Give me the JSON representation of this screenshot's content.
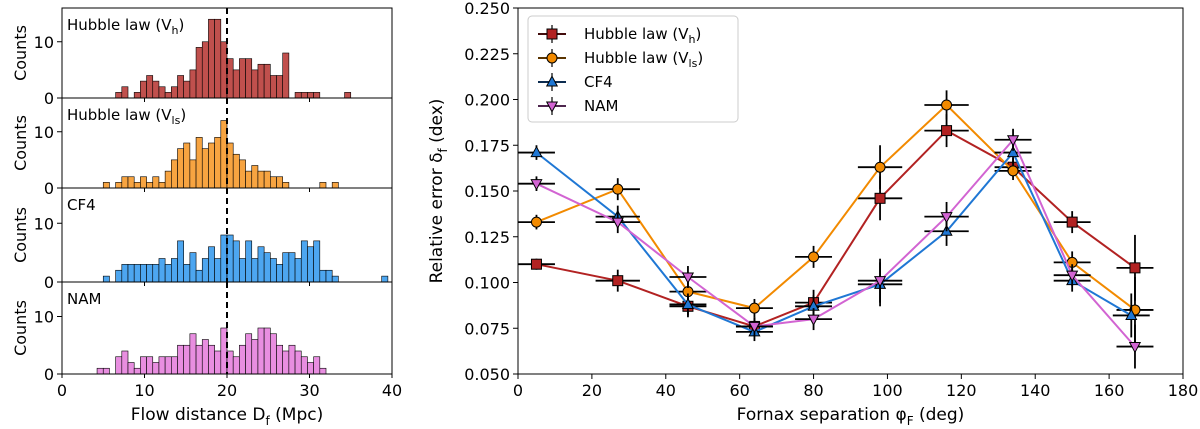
{
  "chart_data": [
    {
      "type": "bar",
      "panel": "histogram-1",
      "label": "Hubble law (V",
      "label_sub": "h",
      "label_close": ")",
      "ylabel": "Counts",
      "xlim": [
        0,
        40
      ],
      "ylim": [
        0,
        16
      ],
      "yticks": [
        "0",
        "10"
      ],
      "ytick_values": [
        0,
        10
      ],
      "marker_line_x": 20,
      "bin_width": 0.75,
      "bins": [
        {
          "x": 6.5,
          "v": 1
        },
        {
          "x": 7.25,
          "v": 2
        },
        {
          "x": 8.75,
          "v": 1
        },
        {
          "x": 9.5,
          "v": 3
        },
        {
          "x": 10.25,
          "v": 4
        },
        {
          "x": 11.0,
          "v": 3
        },
        {
          "x": 11.75,
          "v": 2
        },
        {
          "x": 12.5,
          "v": 1
        },
        {
          "x": 13.25,
          "v": 2
        },
        {
          "x": 14.0,
          "v": 4
        },
        {
          "x": 14.75,
          "v": 3
        },
        {
          "x": 15.5,
          "v": 5
        },
        {
          "x": 16.25,
          "v": 9
        },
        {
          "x": 17.0,
          "v": 10
        },
        {
          "x": 17.75,
          "v": 14
        },
        {
          "x": 18.5,
          "v": 14
        },
        {
          "x": 19.25,
          "v": 10
        },
        {
          "x": 20.0,
          "v": 7
        },
        {
          "x": 20.75,
          "v": 5
        },
        {
          "x": 21.5,
          "v": 7
        },
        {
          "x": 22.25,
          "v": 7
        },
        {
          "x": 23.0,
          "v": 5
        },
        {
          "x": 23.75,
          "v": 6
        },
        {
          "x": 24.5,
          "v": 6
        },
        {
          "x": 25.25,
          "v": 4
        },
        {
          "x": 26.0,
          "v": 4
        },
        {
          "x": 26.75,
          "v": 8
        },
        {
          "x": 28.25,
          "v": 1
        },
        {
          "x": 29.0,
          "v": 1
        },
        {
          "x": 29.75,
          "v": 1
        },
        {
          "x": 30.5,
          "v": 1
        },
        {
          "x": 34.25,
          "v": 1
        }
      ],
      "color": "#c0504d"
    },
    {
      "type": "bar",
      "panel": "histogram-2",
      "label": "Hubble law (V",
      "label_sub": "ls",
      "label_close": ")",
      "ylabel": "Counts",
      "xlim": [
        0,
        40
      ],
      "ylim": [
        0,
        16
      ],
      "yticks": [
        "0",
        "10"
      ],
      "ytick_values": [
        0,
        10
      ],
      "marker_line_x": 20,
      "bin_width": 0.75,
      "bins": [
        {
          "x": 5.0,
          "v": 1
        },
        {
          "x": 6.5,
          "v": 1
        },
        {
          "x": 7.25,
          "v": 2
        },
        {
          "x": 8.0,
          "v": 2
        },
        {
          "x": 8.75,
          "v": 1
        },
        {
          "x": 9.5,
          "v": 2
        },
        {
          "x": 10.25,
          "v": 1
        },
        {
          "x": 11.0,
          "v": 2
        },
        {
          "x": 11.75,
          "v": 1
        },
        {
          "x": 12.5,
          "v": 3
        },
        {
          "x": 13.25,
          "v": 5
        },
        {
          "x": 14.0,
          "v": 7
        },
        {
          "x": 14.75,
          "v": 8
        },
        {
          "x": 15.5,
          "v": 5
        },
        {
          "x": 16.25,
          "v": 9
        },
        {
          "x": 17.0,
          "v": 7
        },
        {
          "x": 17.75,
          "v": 8
        },
        {
          "x": 18.5,
          "v": 9
        },
        {
          "x": 19.25,
          "v": 12
        },
        {
          "x": 20.0,
          "v": 8
        },
        {
          "x": 20.75,
          "v": 6
        },
        {
          "x": 21.5,
          "v": 5
        },
        {
          "x": 22.25,
          "v": 3
        },
        {
          "x": 23.0,
          "v": 4
        },
        {
          "x": 23.75,
          "v": 3
        },
        {
          "x": 24.5,
          "v": 3
        },
        {
          "x": 25.25,
          "v": 2
        },
        {
          "x": 26.0,
          "v": 2
        },
        {
          "x": 26.75,
          "v": 1
        },
        {
          "x": 31.25,
          "v": 1
        },
        {
          "x": 32.75,
          "v": 1
        }
      ],
      "color": "#f7a441"
    },
    {
      "type": "bar",
      "panel": "histogram-3",
      "label": "CF4",
      "ylabel": "Counts",
      "xlim": [
        0,
        40
      ],
      "ylim": [
        0,
        16
      ],
      "yticks": [
        "0",
        "10"
      ],
      "ytick_values": [
        0,
        10
      ],
      "marker_line_x": 20,
      "bin_width": 0.75,
      "bins": [
        {
          "x": 5.0,
          "v": 1
        },
        {
          "x": 6.5,
          "v": 2
        },
        {
          "x": 7.25,
          "v": 3
        },
        {
          "x": 8.0,
          "v": 3
        },
        {
          "x": 8.75,
          "v": 3
        },
        {
          "x": 9.5,
          "v": 3
        },
        {
          "x": 10.25,
          "v": 3
        },
        {
          "x": 11.0,
          "v": 3
        },
        {
          "x": 11.75,
          "v": 4
        },
        {
          "x": 12.5,
          "v": 3
        },
        {
          "x": 13.25,
          "v": 4
        },
        {
          "x": 14.0,
          "v": 7
        },
        {
          "x": 14.75,
          "v": 3
        },
        {
          "x": 15.5,
          "v": 5
        },
        {
          "x": 16.25,
          "v": 2
        },
        {
          "x": 17.0,
          "v": 4
        },
        {
          "x": 17.75,
          "v": 6
        },
        {
          "x": 18.5,
          "v": 4
        },
        {
          "x": 19.25,
          "v": 8
        },
        {
          "x": 20.0,
          "v": 8
        },
        {
          "x": 20.75,
          "v": 7
        },
        {
          "x": 21.5,
          "v": 4
        },
        {
          "x": 22.25,
          "v": 7
        },
        {
          "x": 23.0,
          "v": 4
        },
        {
          "x": 23.75,
          "v": 6
        },
        {
          "x": 24.5,
          "v": 5
        },
        {
          "x": 25.25,
          "v": 4
        },
        {
          "x": 26.0,
          "v": 3
        },
        {
          "x": 26.75,
          "v": 5
        },
        {
          "x": 27.5,
          "v": 5
        },
        {
          "x": 28.25,
          "v": 4
        },
        {
          "x": 29.0,
          "v": 7
        },
        {
          "x": 29.75,
          "v": 6
        },
        {
          "x": 30.5,
          "v": 7
        },
        {
          "x": 31.25,
          "v": 2
        },
        {
          "x": 32.0,
          "v": 2
        },
        {
          "x": 32.75,
          "v": 1
        },
        {
          "x": 38.75,
          "v": 1
        }
      ],
      "color": "#4da6f0"
    },
    {
      "type": "bar",
      "panel": "histogram-4",
      "label": "NAM",
      "ylabel": "Counts",
      "xlabel": "Flow distance D",
      "xlabel_sub": "f",
      "xlabel_unit": " (Mpc)",
      "xlim": [
        0,
        40
      ],
      "ylim": [
        0,
        16
      ],
      "xticks": [
        "0",
        "10",
        "20",
        "30",
        "40"
      ],
      "xtick_values": [
        0,
        10,
        20,
        30,
        40
      ],
      "yticks": [
        "0",
        "10"
      ],
      "ytick_values": [
        0,
        10
      ],
      "marker_line_x": 20,
      "bin_width": 0.75,
      "bins": [
        {
          "x": 4.25,
          "v": 1
        },
        {
          "x": 5.0,
          "v": 1
        },
        {
          "x": 6.5,
          "v": 3
        },
        {
          "x": 7.25,
          "v": 4
        },
        {
          "x": 8.0,
          "v": 2
        },
        {
          "x": 8.75,
          "v": 1
        },
        {
          "x": 9.5,
          "v": 3
        },
        {
          "x": 10.25,
          "v": 3
        },
        {
          "x": 11.0,
          "v": 2
        },
        {
          "x": 11.75,
          "v": 3
        },
        {
          "x": 12.5,
          "v": 3
        },
        {
          "x": 13.25,
          "v": 3
        },
        {
          "x": 14.0,
          "v": 5
        },
        {
          "x": 14.75,
          "v": 5
        },
        {
          "x": 15.5,
          "v": 7
        },
        {
          "x": 16.25,
          "v": 5
        },
        {
          "x": 17.0,
          "v": 6
        },
        {
          "x": 17.75,
          "v": 5
        },
        {
          "x": 18.5,
          "v": 4
        },
        {
          "x": 19.25,
          "v": 8
        },
        {
          "x": 20.0,
          "v": 4
        },
        {
          "x": 20.75,
          "v": 3
        },
        {
          "x": 21.5,
          "v": 5
        },
        {
          "x": 22.25,
          "v": 7
        },
        {
          "x": 23.0,
          "v": 6
        },
        {
          "x": 23.75,
          "v": 8
        },
        {
          "x": 24.5,
          "v": 8
        },
        {
          "x": 25.25,
          "v": 7
        },
        {
          "x": 26.0,
          "v": 5
        },
        {
          "x": 26.75,
          "v": 4
        },
        {
          "x": 27.5,
          "v": 5
        },
        {
          "x": 28.25,
          "v": 4
        },
        {
          "x": 29.0,
          "v": 3
        },
        {
          "x": 29.75,
          "v": 2
        },
        {
          "x": 30.5,
          "v": 3
        },
        {
          "x": 31.25,
          "v": 1
        }
      ],
      "color": "#e88ee0"
    },
    {
      "type": "line",
      "panel": "error-plot",
      "xlabel": "Fornax separation φ",
      "xlabel_sub": "F",
      "xlabel_unit": " (deg)",
      "ylabel": "Relative error δ",
      "ylabel_sub": "f",
      "ylabel_unit": " (dex)",
      "xlim": [
        0,
        180
      ],
      "ylim": [
        0.05,
        0.25
      ],
      "xticks": [
        "0",
        "20",
        "40",
        "60",
        "80",
        "100",
        "120",
        "140",
        "160",
        "180"
      ],
      "xtick_values": [
        0,
        20,
        40,
        60,
        80,
        100,
        120,
        140,
        160,
        180
      ],
      "yticks": [
        "0.050",
        "0.075",
        "0.100",
        "0.125",
        "0.150",
        "0.175",
        "0.200",
        "0.225",
        "0.250"
      ],
      "ytick_values": [
        0.05,
        0.075,
        0.1,
        0.125,
        0.15,
        0.175,
        0.2,
        0.225,
        0.25
      ],
      "legend_position": "top-left",
      "series": [
        {
          "name": "Hubble law (V",
          "name_sub": "h",
          "name_close": ")",
          "marker": "square",
          "color": "#b22222",
          "x": [
            5,
            27,
            46,
            64,
            80,
            98,
            116,
            134,
            150,
            167
          ],
          "y": [
            0.11,
            0.101,
            0.087,
            0.076,
            0.089,
            0.146,
            0.183,
            0.163,
            0.133,
            0.108
          ],
          "xerr": [
            5,
            6,
            5,
            5,
            5,
            6,
            6,
            5,
            5,
            5
          ],
          "yerr": [
            0.003,
            0.006,
            0.006,
            0.005,
            0.007,
            0.012,
            0.009,
            0.005,
            0.006,
            0.018
          ]
        },
        {
          "name": "Hubble law (V",
          "name_sub": "ls",
          "name_close": ")",
          "marker": "circle",
          "color": "#f28a00",
          "x": [
            5,
            27,
            46,
            64,
            80,
            98,
            116,
            134,
            150,
            167
          ],
          "y": [
            0.133,
            0.151,
            0.095,
            0.086,
            0.114,
            0.163,
            0.197,
            0.161,
            0.111,
            0.085
          ],
          "xerr": [
            5,
            6,
            5,
            5,
            5,
            6,
            6,
            5,
            5,
            5
          ],
          "yerr": [
            0.004,
            0.006,
            0.006,
            0.005,
            0.006,
            0.012,
            0.008,
            0.005,
            0.006,
            0.018
          ]
        },
        {
          "name": "CF4",
          "marker": "triangle-up",
          "color": "#1f77d4",
          "x": [
            5,
            27,
            46,
            64,
            80,
            98,
            116,
            134,
            150,
            166
          ],
          "y": [
            0.171,
            0.136,
            0.088,
            0.073,
            0.087,
            0.099,
            0.128,
            0.171,
            0.101,
            0.082
          ],
          "xerr": [
            5,
            6,
            5,
            5,
            5,
            6,
            6,
            5,
            5,
            5
          ],
          "yerr": [
            0.004,
            0.006,
            0.006,
            0.005,
            0.006,
            0.012,
            0.008,
            0.006,
            0.006,
            0.012
          ]
        },
        {
          "name": "NAM",
          "marker": "triangle-down",
          "color": "#d264d2",
          "x": [
            5,
            27,
            46,
            64,
            80,
            98,
            116,
            134,
            150,
            167
          ],
          "y": [
            0.154,
            0.133,
            0.103,
            0.076,
            0.08,
            0.101,
            0.136,
            0.178,
            0.104,
            0.065
          ],
          "xerr": [
            5,
            6,
            5,
            5,
            5,
            6,
            6,
            5,
            5,
            5
          ],
          "yerr": [
            0.004,
            0.006,
            0.006,
            0.005,
            0.006,
            0.012,
            0.008,
            0.006,
            0.006,
            0.012
          ]
        }
      ]
    }
  ]
}
